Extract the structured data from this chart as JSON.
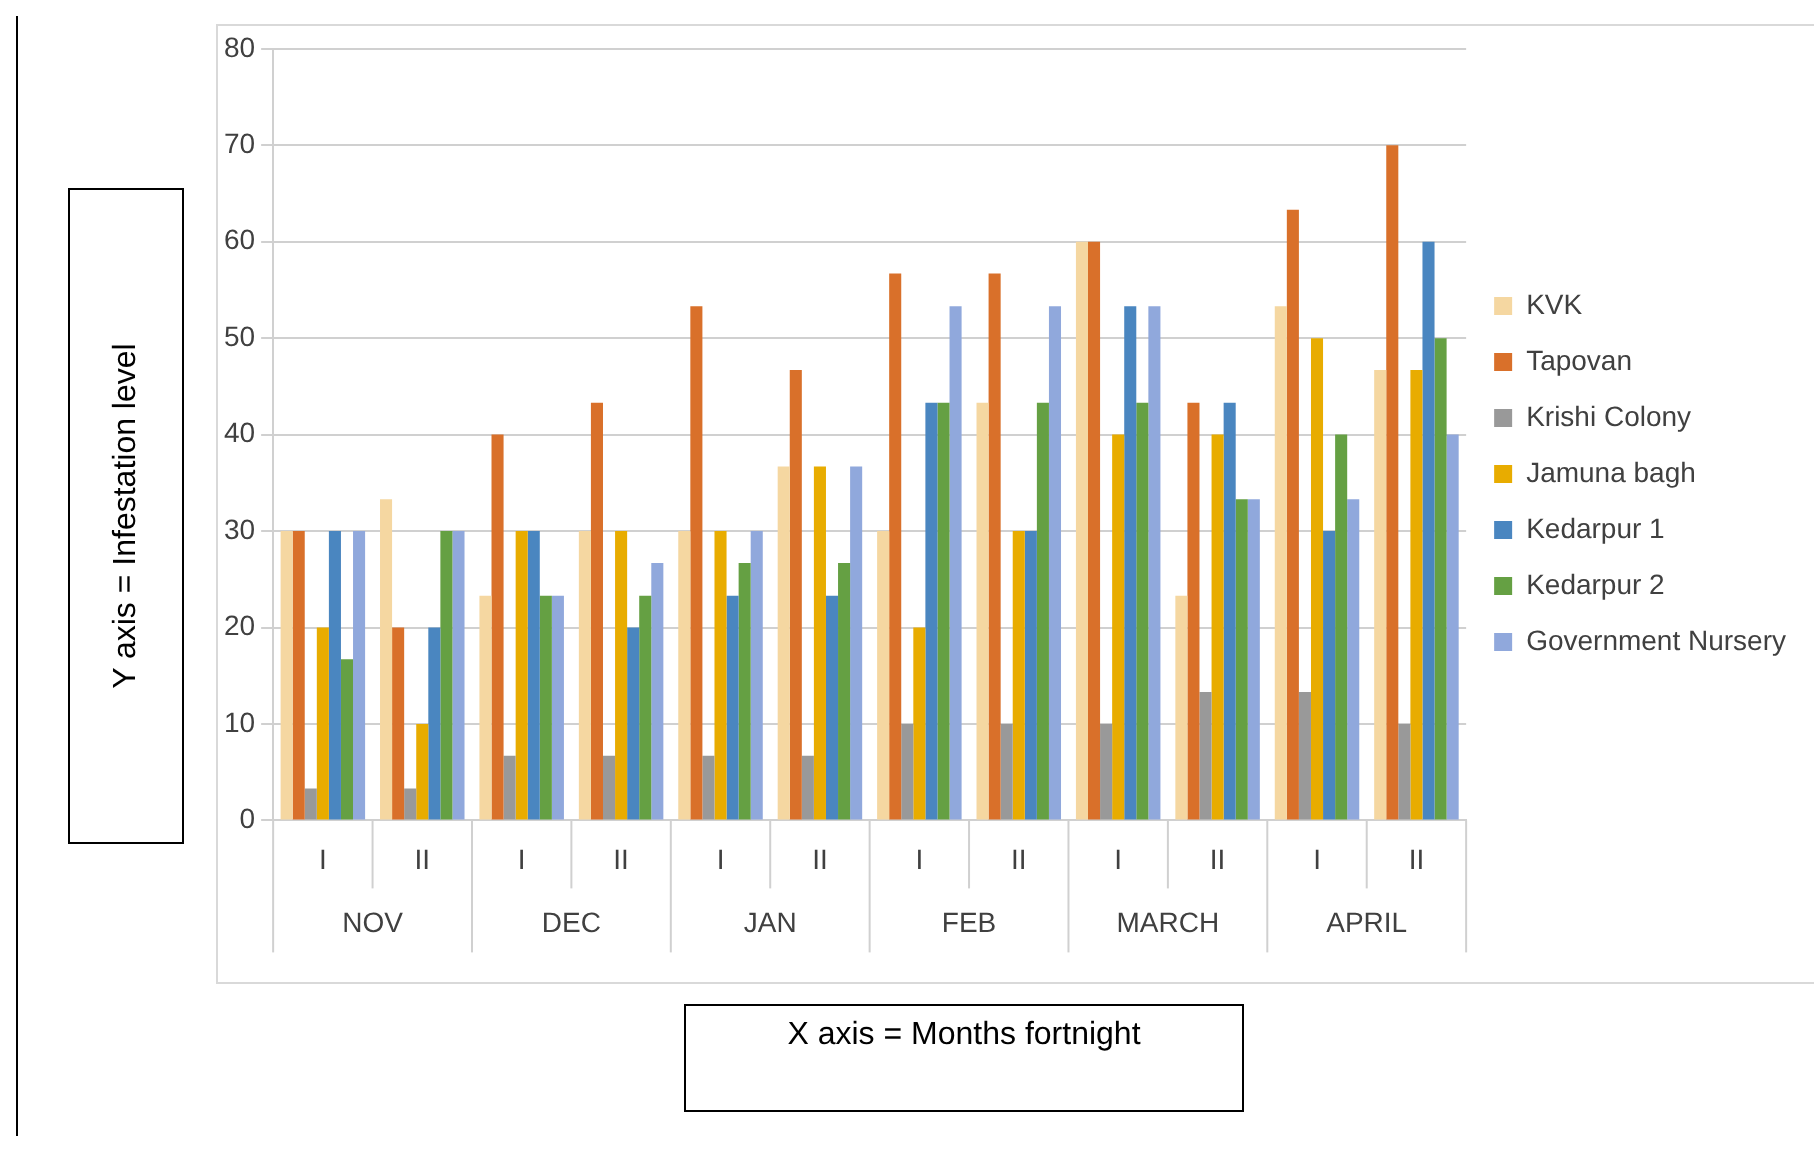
{
  "chart_data": {
    "type": "bar",
    "xlabel": "X axis = Months fortnight",
    "ylabel": "Y axis = Infestation level",
    "categories": [
      "I",
      "II",
      "I",
      "II",
      "I",
      "II",
      "I",
      "II",
      "I",
      "II",
      "I",
      "II"
    ],
    "annotations": [
      "NOV",
      "DEC",
      "JAN",
      "FEB",
      "MARCH",
      "APRIL"
    ],
    "series": [
      {
        "name": "KVK",
        "color": "#f5d7a1",
        "values": [
          30,
          33.3,
          23.3,
          30,
          30,
          36.7,
          30,
          43.3,
          60,
          23.3,
          53.3,
          46.7
        ]
      },
      {
        "name": "Tapovan",
        "color": "#d9702a",
        "values": [
          30,
          20,
          40,
          43.3,
          53.3,
          46.7,
          56.7,
          56.7,
          60,
          43.3,
          63.3,
          70
        ]
      },
      {
        "name": "Krishi Colony",
        "color": "#999999",
        "values": [
          3.3,
          3.3,
          6.7,
          6.7,
          6.7,
          6.7,
          10,
          10,
          10,
          13.3,
          13.3,
          10
        ]
      },
      {
        "name": "Jamuna bagh",
        "color": "#e8ac00",
        "values": [
          20,
          10,
          30,
          30,
          30,
          36.7,
          20,
          30,
          40,
          40,
          50,
          46.7
        ]
      },
      {
        "name": "Kedarpur 1",
        "color": "#4a86c0",
        "values": [
          30,
          20,
          30,
          20,
          23.3,
          23.3,
          43.3,
          30,
          53.3,
          43.3,
          30,
          60
        ]
      },
      {
        "name": "Kedarpur 2",
        "color": "#65a043",
        "values": [
          16.7,
          30,
          23.3,
          23.3,
          26.7,
          26.7,
          43.3,
          43.3,
          43.3,
          33.3,
          40,
          50
        ]
      },
      {
        "name": "Government Nursery",
        "color": "#90a8dc",
        "values": [
          30,
          30,
          23.3,
          26.7,
          30,
          36.7,
          53.3,
          53.3,
          53.3,
          33.3,
          33.3,
          40
        ]
      }
    ],
    "ylim": [
      0,
      80
    ],
    "yticks": [
      0,
      10,
      20,
      30,
      40,
      50,
      60,
      70,
      80
    ],
    "grid": "y",
    "legend": "right"
  }
}
